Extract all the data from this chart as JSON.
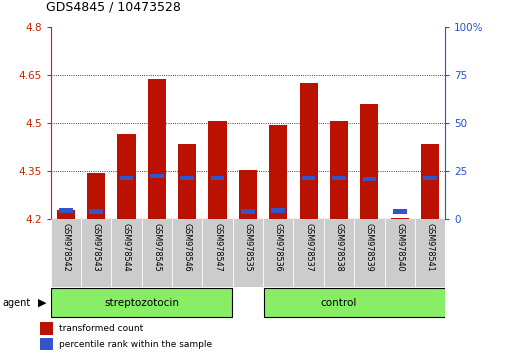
{
  "title": "GDS4845 / 10473528",
  "samples": [
    "GSM978542",
    "GSM978543",
    "GSM978544",
    "GSM978545",
    "GSM978546",
    "GSM978547",
    "GSM978535",
    "GSM978536",
    "GSM978537",
    "GSM978538",
    "GSM978539",
    "GSM978540",
    "GSM978541"
  ],
  "red_values": [
    4.228,
    4.345,
    4.465,
    4.638,
    4.435,
    4.505,
    4.355,
    4.495,
    4.625,
    4.505,
    4.56,
    4.205,
    4.435
  ],
  "blue_values": [
    4.228,
    4.225,
    4.328,
    4.335,
    4.328,
    4.328,
    4.225,
    4.228,
    4.33,
    4.33,
    4.325,
    4.225,
    4.328
  ],
  "y_min": 4.2,
  "y_max": 4.8,
  "y_ticks_left": [
    4.2,
    4.35,
    4.5,
    4.65,
    4.8
  ],
  "y_ticks_right": [
    0,
    25,
    50,
    75,
    100
  ],
  "grid_lines": [
    4.35,
    4.5,
    4.65
  ],
  "group1_label": "streptozotocin",
  "group2_label": "control",
  "group1_count": 6,
  "group2_count": 7,
  "agent_label": "agent",
  "legend_red": "transformed count",
  "legend_blue": "percentile rank within the sample",
  "bar_color": "#bb1100",
  "blue_color": "#3355cc",
  "group_bg": "#88ee66",
  "left_axis_color": "#cc2200",
  "right_axis_color": "#2255cc",
  "bar_width": 0.6,
  "fig_width": 5.06,
  "fig_height": 3.54,
  "dpi": 100
}
